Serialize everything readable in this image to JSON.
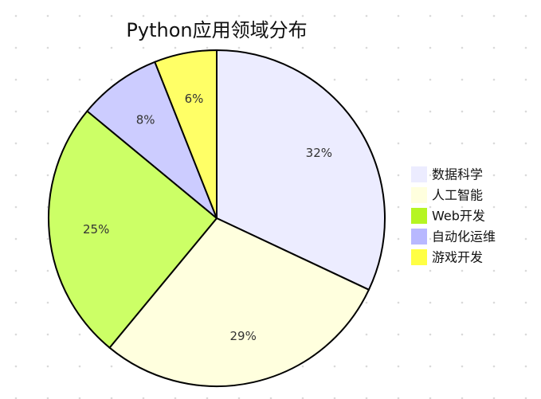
{
  "chart_data": {
    "type": "pie",
    "title": "Python应用领域分布",
    "slices": [
      {
        "label": "数据科学",
        "value": 32,
        "display": "32%",
        "color": "#ECECFF"
      },
      {
        "label": "人工智能",
        "value": 29,
        "display": "29%",
        "color": "#FFFFDE"
      },
      {
        "label": "Web开发",
        "value": 25,
        "display": "25%",
        "color": "#CCFF66"
      },
      {
        "label": "自动化运维",
        "value": 8,
        "display": "8%",
        "color": "#CCCCFF"
      },
      {
        "label": "游戏开发",
        "value": 6,
        "display": "6%",
        "color": "#FFFF66"
      }
    ],
    "legend": {
      "placement": "right",
      "entries": [
        {
          "label": "数据科学",
          "color": "#ECECFF"
        },
        {
          "label": "人工智能",
          "color": "#FFFFDE"
        },
        {
          "label": "Web开发",
          "color": "#B5F523"
        },
        {
          "label": "自动化运维",
          "color": "#B8B8FF"
        },
        {
          "label": "游戏开发",
          "color": "#FFFF44"
        }
      ]
    },
    "slice_stroke_color": "#000000",
    "grid": false
  }
}
